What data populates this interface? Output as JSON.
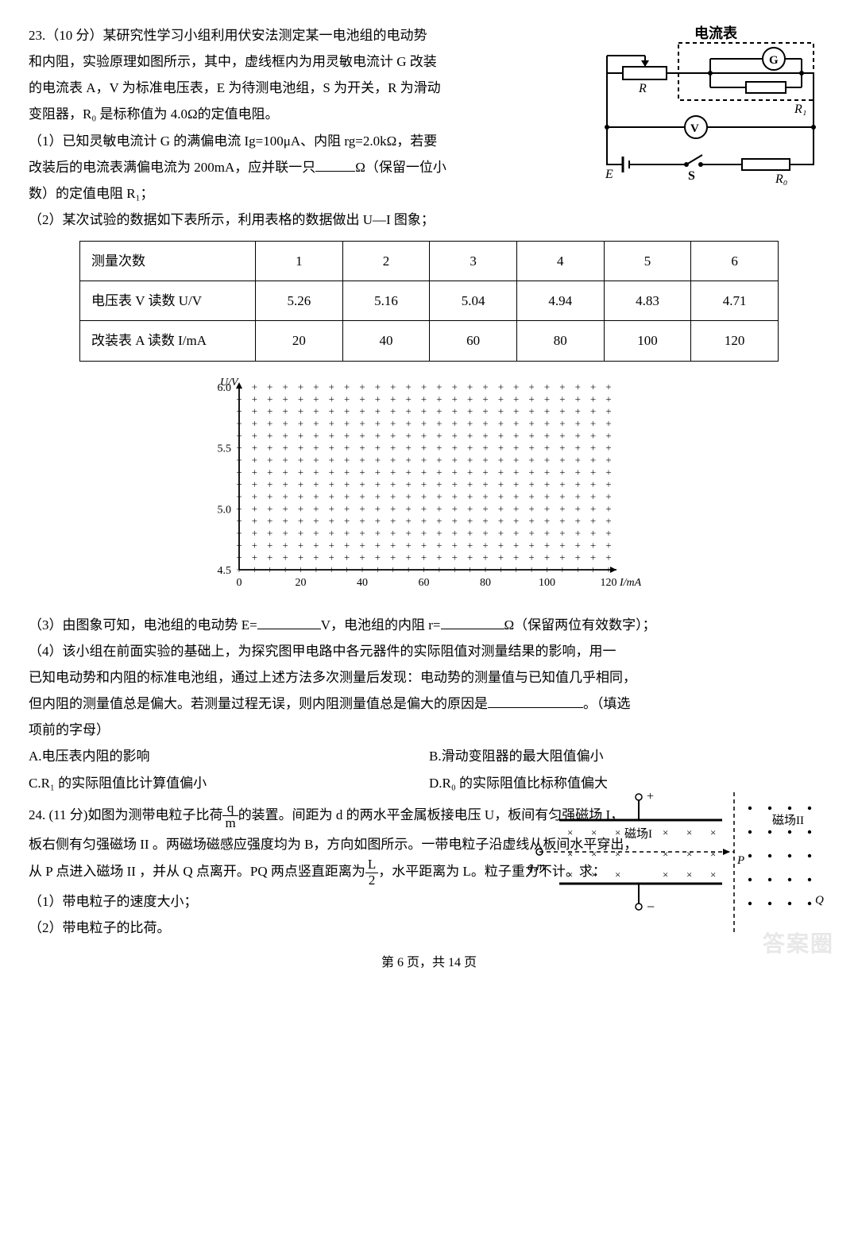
{
  "q23": {
    "num": "23.",
    "points": "（10 分）",
    "p1a": "某研究性学习小组利用伏安法测定某一电池组的电动势",
    "p1b": "和内阻，实验原理如图所示，其中，虚线框内为用灵敏电流计 G 改装",
    "p1c": "的电流表 A，V 为标准电压表，E 为待测电池组，S 为开关，R 为滑动",
    "p1d": "变阻器，R₀ 是标称值为 4.0Ω的定值电阻。",
    "part1a": "（1）已知灵敏电流计 G 的满偏电流 Ig=100μA、内阻 rg=2.0kΩ，若要",
    "part1b": "改装后的电流表满偏电流为 200mA，应并联一只",
    "part1c": "Ω（保留一位小",
    "part1d": "数）的定值电阻 R₁；",
    "part2": "（2）某次试验的数据如下表所示，利用表格的数据做出 U—I 图象；",
    "table": {
      "rows": [
        {
          "h": "测量次数",
          "c": [
            "1",
            "2",
            "3",
            "4",
            "5",
            "6"
          ]
        },
        {
          "h": "电压表 V 读数 U/V",
          "c": [
            "5.26",
            "5.16",
            "5.04",
            "4.94",
            "4.83",
            "4.71"
          ]
        },
        {
          "h": "改装表 A 读数 I/mA",
          "c": [
            "20",
            "40",
            "60",
            "80",
            "100",
            "120"
          ]
        }
      ]
    },
    "chart": {
      "ylabel": "U/V",
      "xlabel": "I/mA",
      "yticks": [
        "4.5",
        "5.0",
        "5.5",
        "6.0"
      ],
      "xticks": [
        "0",
        "20",
        "40",
        "60",
        "80",
        "100",
        "120"
      ],
      "ylim": [
        4.5,
        6.0
      ],
      "xlim": [
        0,
        120
      ],
      "bg": "#ffffff",
      "grid_color": "#000000",
      "axis_color": "#000000",
      "label_fontsize": 14
    },
    "part3a": "（3）由图象可知，电池组的电动势 E=",
    "part3b": "V，电池组的内阻 r=",
    "part3c": "Ω（保留两位有效数字）；",
    "part4a": "（4）该小组在前面实验的基础上，为探究图甲电路中各元器件的实际阻值对测量结果的影响，用一",
    "part4b": "已知电动势和内阻的标准电池组，通过上述方法多次测量后发现：电动势的测量值与已知值几乎相同，",
    "part4c": "但内阻的测量值总是偏大。若测量过程无误，则内阻测量值总是偏大的原因是",
    "part4d": "。（填选",
    "part4e": "项前的字母）",
    "options": {
      "A": "A.电压表内阻的影响",
      "B": "B.滑动变阻器的最大阻值偏小",
      "C": "C.R₁ 的实际阻值比计算值偏小",
      "D": "D.R₀ 的实际阻值比标称值偏大"
    },
    "circuit": {
      "title": "电流表",
      "R": "R",
      "R1": "R₁",
      "V": "V",
      "G": "G",
      "E": "E",
      "S": "S",
      "R0": "R₀"
    }
  },
  "q24": {
    "num": "24.",
    "points": "(11 分)",
    "p1a": "如图为测带电粒子比荷",
    "p1b": "的装置。间距为 d 的两水平金属板接电压 U，板间有匀强磁场 I，",
    "p2": "板右侧有匀强磁场 II 。两磁场磁感应强度均为 B，方向如图所示。一带电粒子沿虚线从板间水平穿出，",
    "p3a": "从 P 点进入磁场 II ，并从 Q 点离开。PQ 两点竖直距离为",
    "p3b": "，水平距离为 L。粒子重力不计。求：",
    "frac1": {
      "num": "q",
      "den": "m"
    },
    "frac2": {
      "num": "L",
      "den": "2"
    },
    "sub1": "（1）带电粒子的速度大小；",
    "sub2": "（2）带电粒子的比荷。",
    "fig": {
      "field1": "磁场I",
      "field2": "磁场II",
      "P": "P",
      "Q": "Q",
      "qm": "q,m",
      "plus": "+",
      "minus": "−"
    }
  },
  "footer": "第 6 页，共 14 页",
  "watermark": "答案圈"
}
